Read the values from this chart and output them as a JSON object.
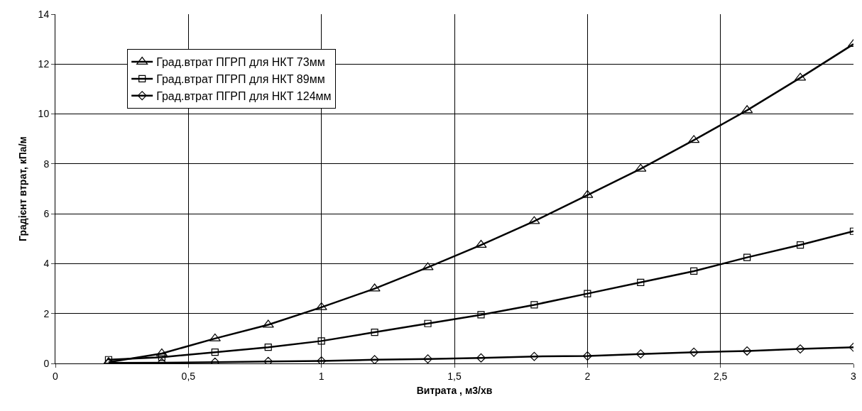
{
  "chart_data": {
    "type": "line",
    "xlabel": "Витрата , м3/хв",
    "ylabel": "Градієнт втрат, кПа/м",
    "x": [
      0.2,
      0.4,
      0.6,
      0.8,
      1.0,
      1.2,
      1.4,
      1.6,
      1.8,
      2.0,
      2.2,
      2.4,
      2.6,
      2.8,
      3.0
    ],
    "series": [
      {
        "name": "Град.втрат ПГРП для НКТ 73мм",
        "color": "#000000",
        "marker": "triangle",
        "values": [
          0.05,
          0.4,
          1.0,
          1.55,
          2.25,
          3.0,
          3.85,
          4.75,
          5.7,
          6.75,
          7.8,
          8.95,
          10.15,
          11.45,
          12.8
        ]
      },
      {
        "name": "Град.втрат ПГРП для НКТ 89мм",
        "color": "#000000",
        "marker": "square",
        "values": [
          0.15,
          0.25,
          0.45,
          0.65,
          0.9,
          1.25,
          1.6,
          1.95,
          2.35,
          2.8,
          3.25,
          3.7,
          4.25,
          4.75,
          5.3
        ]
      },
      {
        "name": "Град.втрат ПГРП для НКТ 124мм",
        "color": "#000000",
        "marker": "diamond",
        "values": [
          0.02,
          0.03,
          0.05,
          0.08,
          0.1,
          0.15,
          0.18,
          0.22,
          0.28,
          0.3,
          0.38,
          0.45,
          0.5,
          0.58,
          0.65
        ]
      }
    ],
    "xlim": [
      0,
      3
    ],
    "xticks": [
      0,
      {
        "value": 0.5,
        "label": "0,5"
      },
      1,
      {
        "value": 1.5,
        "label": "1,5"
      },
      2,
      {
        "value": 2.5,
        "label": "2,5"
      },
      3
    ],
    "ylim": [
      0,
      14
    ],
    "yticks": [
      0,
      2,
      4,
      6,
      8,
      10,
      12,
      14
    ],
    "grid": true,
    "legend": "top left",
    "line_style": "solid"
  }
}
